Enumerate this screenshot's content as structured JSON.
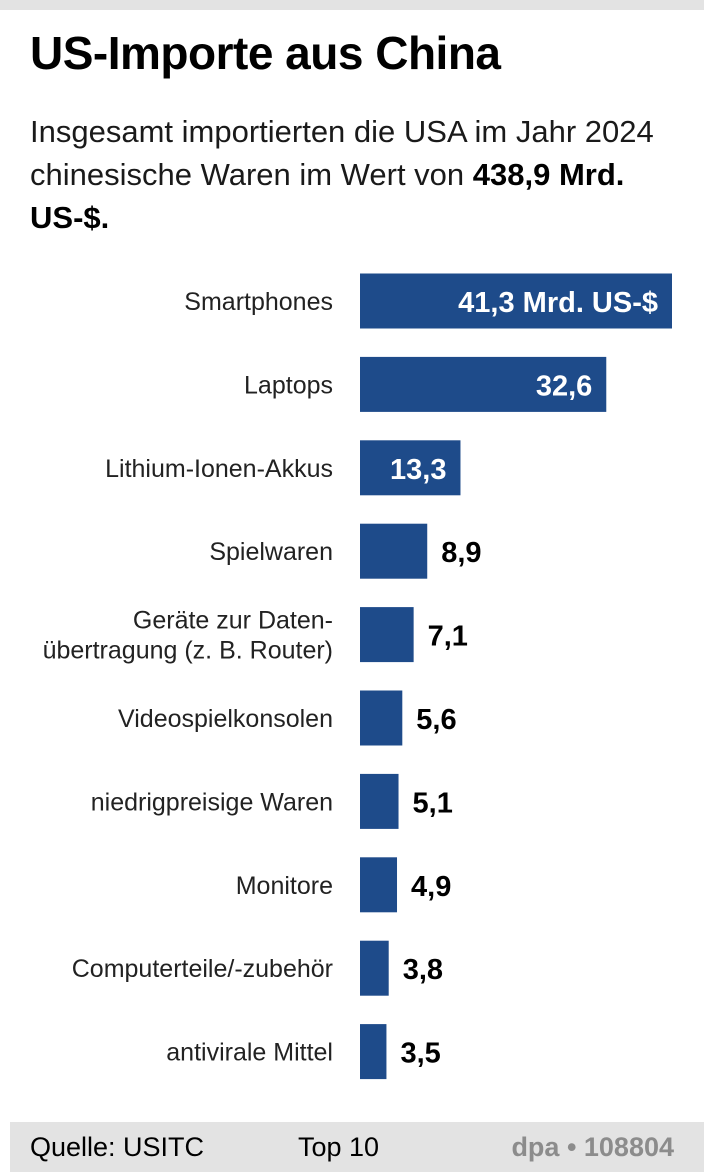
{
  "header": {
    "title": "US-Importe aus China",
    "subtitle_text": "Insgesamt importierten die USA im Jahr 2024 chinesische Waren im Wert von",
    "subtitle_total": "438,9 Mrd. US-$."
  },
  "chart_data": {
    "type": "bar",
    "orientation": "horizontal",
    "categories": [
      [
        "Smartphones"
      ],
      [
        "Laptops"
      ],
      [
        "Lithium-Ionen-Akkus"
      ],
      [
        "Spielwaren"
      ],
      [
        "Geräte zur Daten-",
        "übertragung (z. B. Router)"
      ],
      [
        "Videospielkonsolen"
      ],
      [
        "niedrigpreisige Waren"
      ],
      [
        "Monitore"
      ],
      [
        "Computerteile/-zubehör"
      ],
      [
        "antivirale Mittel"
      ]
    ],
    "values": [
      41.3,
      32.6,
      13.3,
      8.9,
      7.1,
      5.6,
      5.1,
      4.9,
      3.8,
      3.5
    ],
    "value_labels": [
      "41,3 Mrd. US-$",
      "32,6",
      "13,3",
      "8,9",
      "7,1",
      "5,6",
      "5,1",
      "4,9",
      "3,8",
      "3,5"
    ],
    "unit": "Mrd. US-$",
    "xlim": [
      0,
      41.3
    ],
    "grid": false,
    "bar_color": "#1e4b8a"
  },
  "footer": {
    "source": "Quelle: USITC",
    "rank": "Top 10",
    "credit": "dpa • 108804"
  },
  "colors": {
    "bar": "#1e4b8a",
    "label_inside": "#ffffff",
    "label_outside": "#000000",
    "footer_bg": "#e3e3e3",
    "credit": "#8c8c8c"
  }
}
